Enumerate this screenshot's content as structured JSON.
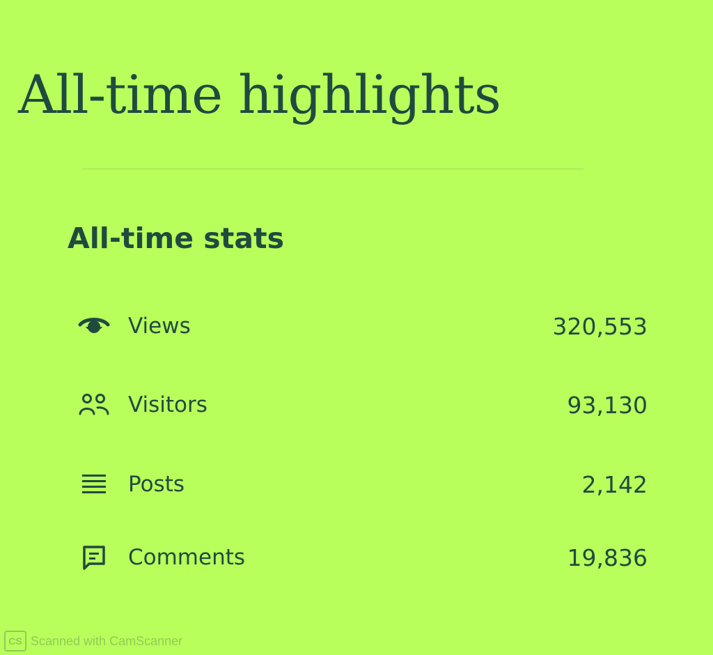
{
  "page": {
    "title": "All-time highlights"
  },
  "stats": {
    "heading": "All-time stats",
    "items": [
      {
        "icon": "eye-icon",
        "label": "Views",
        "value": "320,553"
      },
      {
        "icon": "users-icon",
        "label": "Visitors",
        "value": "93,130"
      },
      {
        "icon": "posts-icon",
        "label": "Posts",
        "value": "2,142"
      },
      {
        "icon": "comment-icon",
        "label": "Comments",
        "value": "19,836"
      }
    ]
  },
  "footer": {
    "scan_text": "Scanned with CamScanner",
    "badge": "CS"
  },
  "colors": {
    "background": "#b8ff5c",
    "text": "#1f4b3f"
  }
}
